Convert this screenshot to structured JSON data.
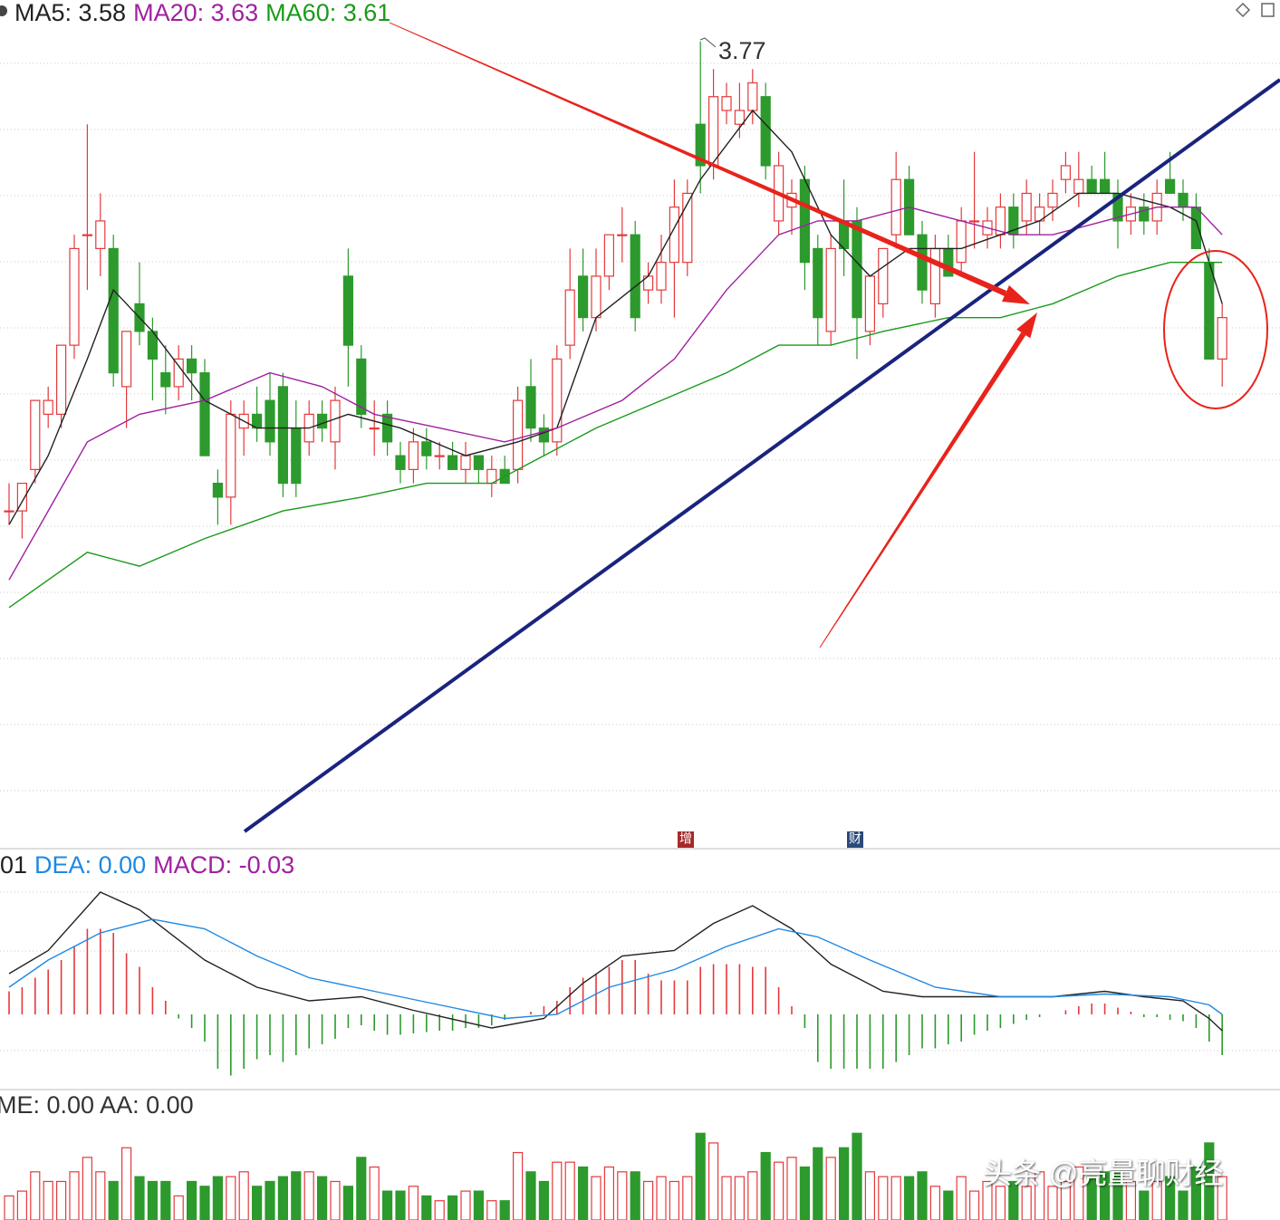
{
  "chart_data": [
    {
      "type": "candlestick",
      "ylim": [
        3.19,
        3.8
      ],
      "grid": true,
      "up_color": "#e4393c",
      "down_color": "#2c9a2c",
      "candles": [
        [
          3.43,
          3.45,
          3.42,
          3.43
        ],
        [
          3.43,
          3.45,
          3.41,
          3.45
        ],
        [
          3.46,
          3.51,
          3.45,
          3.51
        ],
        [
          3.5,
          3.52,
          3.49,
          3.51
        ],
        [
          3.5,
          3.55,
          3.49,
          3.55
        ],
        [
          3.55,
          3.63,
          3.54,
          3.62
        ],
        [
          3.63,
          3.71,
          3.59,
          3.63
        ],
        [
          3.62,
          3.66,
          3.6,
          3.64
        ],
        [
          3.62,
          3.63,
          3.52,
          3.53
        ],
        [
          3.52,
          3.56,
          3.49,
          3.56
        ],
        [
          3.58,
          3.61,
          3.55,
          3.56
        ],
        [
          3.56,
          3.57,
          3.51,
          3.54
        ],
        [
          3.53,
          3.55,
          3.5,
          3.52
        ],
        [
          3.52,
          3.55,
          3.51,
          3.54
        ],
        [
          3.54,
          3.55,
          3.51,
          3.53
        ],
        [
          3.53,
          3.54,
          3.47,
          3.47
        ],
        [
          3.45,
          3.46,
          3.42,
          3.44
        ],
        [
          3.44,
          3.51,
          3.42,
          3.5
        ],
        [
          3.49,
          3.51,
          3.47,
          3.5
        ],
        [
          3.5,
          3.52,
          3.48,
          3.49
        ],
        [
          3.51,
          3.53,
          3.47,
          3.48
        ],
        [
          3.52,
          3.53,
          3.44,
          3.45
        ],
        [
          3.49,
          3.51,
          3.44,
          3.45
        ],
        [
          3.48,
          3.51,
          3.47,
          3.5
        ],
        [
          3.5,
          3.51,
          3.48,
          3.49
        ],
        [
          3.48,
          3.52,
          3.46,
          3.51
        ],
        [
          3.6,
          3.62,
          3.52,
          3.55
        ],
        [
          3.54,
          3.55,
          3.49,
          3.5
        ],
        [
          3.49,
          3.51,
          3.47,
          3.49
        ],
        [
          3.5,
          3.51,
          3.47,
          3.48
        ],
        [
          3.47,
          3.48,
          3.45,
          3.46
        ],
        [
          3.46,
          3.49,
          3.45,
          3.48
        ],
        [
          3.48,
          3.49,
          3.46,
          3.47
        ],
        [
          3.47,
          3.48,
          3.46,
          3.47
        ],
        [
          3.47,
          3.48,
          3.46,
          3.46
        ],
        [
          3.46,
          3.48,
          3.45,
          3.47
        ],
        [
          3.47,
          3.47,
          3.45,
          3.46
        ],
        [
          3.45,
          3.47,
          3.44,
          3.46
        ],
        [
          3.46,
          3.47,
          3.45,
          3.45
        ],
        [
          3.46,
          3.52,
          3.45,
          3.51
        ],
        [
          3.52,
          3.54,
          3.48,
          3.49
        ],
        [
          3.49,
          3.5,
          3.47,
          3.48
        ],
        [
          3.48,
          3.55,
          3.47,
          3.54
        ],
        [
          3.55,
          3.62,
          3.54,
          3.59
        ],
        [
          3.6,
          3.62,
          3.56,
          3.57
        ],
        [
          3.57,
          3.62,
          3.56,
          3.6
        ],
        [
          3.6,
          3.63,
          3.59,
          3.63
        ],
        [
          3.63,
          3.65,
          3.61,
          3.63
        ],
        [
          3.63,
          3.64,
          3.56,
          3.57
        ],
        [
          3.59,
          3.61,
          3.58,
          3.6
        ],
        [
          3.59,
          3.63,
          3.58,
          3.61
        ],
        [
          3.61,
          3.67,
          3.57,
          3.65
        ],
        [
          3.61,
          3.67,
          3.6,
          3.66
        ],
        [
          3.71,
          3.77,
          3.66,
          3.68
        ],
        [
          3.68,
          3.75,
          3.67,
          3.73
        ],
        [
          3.72,
          3.74,
          3.71,
          3.73
        ],
        [
          3.71,
          3.74,
          3.7,
          3.72
        ],
        [
          3.72,
          3.75,
          3.71,
          3.74
        ],
        [
          3.73,
          3.74,
          3.67,
          3.68
        ],
        [
          3.64,
          3.69,
          3.63,
          3.68
        ],
        [
          3.65,
          3.67,
          3.63,
          3.66
        ],
        [
          3.67,
          3.68,
          3.59,
          3.61
        ],
        [
          3.62,
          3.63,
          3.55,
          3.57
        ],
        [
          3.56,
          3.63,
          3.55,
          3.62
        ],
        [
          3.64,
          3.67,
          3.6,
          3.62
        ],
        [
          3.64,
          3.65,
          3.54,
          3.57
        ],
        [
          3.56,
          3.6,
          3.55,
          3.6
        ],
        [
          3.58,
          3.62,
          3.57,
          3.62
        ],
        [
          3.63,
          3.69,
          3.62,
          3.67
        ],
        [
          3.67,
          3.68,
          3.63,
          3.63
        ],
        [
          3.63,
          3.64,
          3.58,
          3.59
        ],
        [
          3.58,
          3.63,
          3.57,
          3.62
        ],
        [
          3.62,
          3.63,
          3.6,
          3.6
        ],
        [
          3.61,
          3.65,
          3.6,
          3.64
        ],
        [
          3.64,
          3.69,
          3.62,
          3.64
        ],
        [
          3.63,
          3.65,
          3.62,
          3.64
        ],
        [
          3.63,
          3.66,
          3.62,
          3.65
        ],
        [
          3.65,
          3.66,
          3.62,
          3.63
        ],
        [
          3.64,
          3.67,
          3.63,
          3.66
        ],
        [
          3.64,
          3.66,
          3.63,
          3.65
        ],
        [
          3.65,
          3.67,
          3.64,
          3.66
        ],
        [
          3.67,
          3.69,
          3.66,
          3.68
        ],
        [
          3.66,
          3.69,
          3.65,
          3.67
        ],
        [
          3.67,
          3.68,
          3.66,
          3.66
        ],
        [
          3.67,
          3.69,
          3.66,
          3.66
        ],
        [
          3.66,
          3.67,
          3.62,
          3.64
        ],
        [
          3.64,
          3.66,
          3.63,
          3.65
        ],
        [
          3.65,
          3.66,
          3.63,
          3.64
        ],
        [
          3.64,
          3.67,
          3.63,
          3.66
        ],
        [
          3.67,
          3.69,
          3.66,
          3.66
        ],
        [
          3.66,
          3.67,
          3.64,
          3.65
        ],
        [
          3.65,
          3.66,
          3.62,
          3.62
        ],
        [
          3.61,
          3.62,
          3.54,
          3.54
        ],
        [
          3.54,
          3.58,
          3.52,
          3.57
        ]
      ],
      "series": [
        {
          "name": "MA5: 3.58",
          "color": "#222222",
          "x": [
            0,
            3,
            6,
            8,
            11,
            15,
            19,
            23,
            26,
            30,
            35,
            39,
            42,
            45,
            49,
            53,
            57,
            60,
            63,
            66,
            69,
            73,
            76,
            79,
            82,
            85,
            89,
            91,
            93
          ],
          "values": [
            3.42,
            3.47,
            3.54,
            3.59,
            3.56,
            3.51,
            3.49,
            3.49,
            3.5,
            3.49,
            3.47,
            3.48,
            3.49,
            3.57,
            3.6,
            3.67,
            3.72,
            3.69,
            3.63,
            3.6,
            3.62,
            3.62,
            3.63,
            3.64,
            3.66,
            3.66,
            3.65,
            3.64,
            3.58
          ]
        },
        {
          "name": "MA20: 3.63",
          "color": "#a020a0",
          "x": [
            0,
            3,
            6,
            10,
            15,
            20,
            24,
            28,
            33,
            38,
            42,
            47,
            51,
            55,
            59,
            62,
            65,
            69,
            73,
            77,
            80,
            84,
            88,
            91,
            93
          ],
          "values": [
            3.38,
            3.43,
            3.48,
            3.5,
            3.51,
            3.53,
            3.52,
            3.5,
            3.49,
            3.48,
            3.49,
            3.51,
            3.54,
            3.59,
            3.63,
            3.64,
            3.64,
            3.65,
            3.64,
            3.63,
            3.63,
            3.64,
            3.65,
            3.65,
            3.63
          ]
        },
        {
          "name": "MA60: 3.61",
          "color": "#1a9a1a",
          "x": [
            0,
            6,
            10,
            15,
            21,
            27,
            32,
            37,
            41,
            45,
            50,
            55,
            59,
            63,
            67,
            72,
            76,
            80,
            85,
            89,
            93
          ],
          "values": [
            3.36,
            3.4,
            3.39,
            3.41,
            3.43,
            3.44,
            3.45,
            3.45,
            3.47,
            3.49,
            3.51,
            3.53,
            3.55,
            3.55,
            3.56,
            3.57,
            3.57,
            3.58,
            3.6,
            3.61,
            3.61
          ]
        }
      ],
      "event_markers": [
        "增",
        "财"
      ]
    },
    {
      "type": "macd",
      "ylim": [
        -0.06,
        0.12
      ],
      "series": [
        {
          "name": "01",
          "color": "#222222",
          "x": [
            0,
            3,
            7,
            10,
            15,
            19,
            23,
            27,
            31,
            37,
            41,
            44,
            47,
            51,
            54,
            57,
            60,
            63,
            67,
            70,
            73,
            77,
            80,
            84,
            87,
            90,
            92,
            93
          ],
          "values": [
            0.03,
            0.047,
            0.09,
            0.077,
            0.04,
            0.02,
            0.01,
            0.013,
            0.003,
            -0.01,
            -0.003,
            0.023,
            0.043,
            0.047,
            0.067,
            0.08,
            0.063,
            0.037,
            0.017,
            0.013,
            0.013,
            0.013,
            0.013,
            0.017,
            0.013,
            0.01,
            -0.003,
            -0.012
          ]
        },
        {
          "name": "DEA: 0.00",
          "color": "#1e88e5",
          "x": [
            0,
            3,
            7,
            11,
            15,
            19,
            23,
            28,
            33,
            38,
            42,
            46,
            51,
            55,
            59,
            62,
            66,
            71,
            76,
            80,
            84,
            89,
            92,
            93
          ],
          "values": [
            0.02,
            0.04,
            0.06,
            0.07,
            0.063,
            0.043,
            0.027,
            0.017,
            0.007,
            -0.003,
            0.0,
            0.02,
            0.033,
            0.05,
            0.063,
            0.057,
            0.04,
            0.02,
            0.013,
            0.013,
            0.015,
            0.013,
            0.007,
            0.0
          ]
        },
        {
          "name": "MACD: -0.03",
          "color": "#a020a0",
          "up_color": "#e4393c",
          "down_color": "#2c9a2c",
          "values": [
            0.017,
            0.02,
            0.027,
            0.033,
            0.04,
            0.05,
            0.063,
            0.063,
            0.06,
            0.045,
            0.035,
            0.02,
            0.01,
            -0.003,
            -0.01,
            -0.02,
            -0.04,
            -0.045,
            -0.04,
            -0.033,
            -0.03,
            -0.035,
            -0.03,
            -0.025,
            -0.022,
            -0.018,
            -0.01,
            -0.008,
            -0.012,
            -0.015,
            -0.015,
            -0.014,
            -0.013,
            -0.012,
            -0.012,
            -0.01,
            -0.01,
            -0.008,
            -0.004,
            0,
            0.002,
            0.006,
            0.01,
            0.02,
            0.027,
            0.03,
            0.035,
            0.04,
            0.04,
            0.03,
            0.025,
            0.025,
            0.025,
            0.035,
            0.037,
            0.037,
            0.037,
            0.035,
            0.035,
            0.02,
            0.006,
            -0.01,
            -0.035,
            -0.04,
            -0.04,
            -0.04,
            -0.04,
            -0.04,
            -0.035,
            -0.03,
            -0.025,
            -0.025,
            -0.022,
            -0.02,
            -0.015,
            -0.012,
            -0.01,
            -0.007,
            -0.004,
            -0.002,
            0,
            0.003,
            0.006,
            0.008,
            0.008,
            0.005,
            0.002,
            -0.002,
            -0.002,
            -0.004,
            -0.005,
            -0.01,
            -0.02,
            -0.03
          ]
        }
      ]
    },
    {
      "type": "volume",
      "title": "ME: 0.00 AA: 0.00",
      "ylim": [
        0,
        110
      ],
      "values": [
        25,
        30,
        50,
        40,
        40,
        50,
        65,
        50,
        40,
        75,
        45,
        40,
        40,
        25,
        40,
        35,
        45,
        45,
        50,
        35,
        40,
        45,
        50,
        50,
        45,
        40,
        35,
        65,
        55,
        30,
        30,
        35,
        25,
        20,
        25,
        30,
        30,
        20,
        20,
        70,
        50,
        40,
        60,
        60,
        55,
        45,
        55,
        50,
        50,
        40,
        45,
        40,
        45,
        90,
        80,
        45,
        45,
        50,
        70,
        60,
        65,
        55,
        75,
        65,
        75,
        90,
        50,
        45,
        45,
        45,
        50,
        35,
        30,
        45,
        30,
        40,
        35,
        40,
        35,
        50,
        35,
        40,
        55,
        45,
        50,
        50,
        40,
        30,
        40,
        45,
        30,
        55,
        80,
        45
      ]
    }
  ],
  "watermark": "头条 @亮量聊财经"
}
